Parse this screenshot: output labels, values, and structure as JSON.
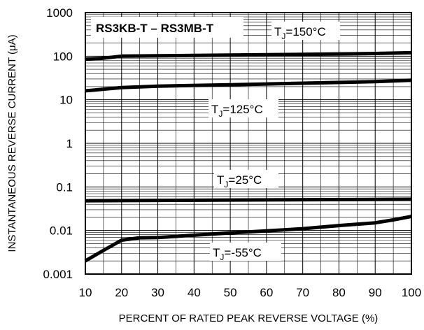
{
  "chart_data": {
    "type": "line",
    "title": "RS3KB-T – RS3MB-T",
    "xlabel": "PERCENT OF RATED PEAK REVERSE VOLTAGE (%)",
    "ylabel": "INSTANTANEOUS REVERSE CURRENT (μA)",
    "xlim": [
      10,
      100
    ],
    "ylim": [
      0.001,
      1000
    ],
    "yscale": "log",
    "grid": true,
    "x_ticks": [
      "10",
      "20",
      "30",
      "40",
      "50",
      "60",
      "70",
      "80",
      "90",
      "100"
    ],
    "y_ticks": [
      "1000",
      "100",
      "10",
      "1",
      "0.1",
      "0.01",
      "0.001"
    ],
    "series": [
      {
        "name": "TJ=150°C",
        "label_main": "T",
        "label_sub": "J",
        "label_rest": "=150°C",
        "x": [
          10,
          14,
          20,
          30,
          50,
          70,
          90,
          100
        ],
        "y": [
          85,
          88,
          100,
          102,
          106,
          110,
          115,
          120
        ]
      },
      {
        "name": "TJ=125°C",
        "label_main": "T",
        "label_sub": "J",
        "label_rest": "=125°C",
        "x": [
          10,
          20,
          30,
          50,
          70,
          90,
          100
        ],
        "y": [
          16,
          19,
          20.5,
          22,
          24,
          26,
          28
        ]
      },
      {
        "name": "TJ=25°C",
        "label_main": "T",
        "label_sub": "J",
        "label_rest": "=25°C",
        "x": [
          10,
          50,
          100
        ],
        "y": [
          0.048,
          0.05,
          0.052
        ]
      },
      {
        "name": "TJ=-55°C",
        "label_main": "T",
        "label_sub": "J",
        "label_rest": "=-55°C",
        "x": [
          10,
          15,
          20,
          25,
          30,
          40,
          50,
          60,
          70,
          80,
          90,
          95,
          100
        ],
        "y": [
          0.002,
          0.0035,
          0.006,
          0.0068,
          0.0069,
          0.0078,
          0.0088,
          0.0098,
          0.011,
          0.013,
          0.015,
          0.0175,
          0.021
        ]
      }
    ]
  }
}
